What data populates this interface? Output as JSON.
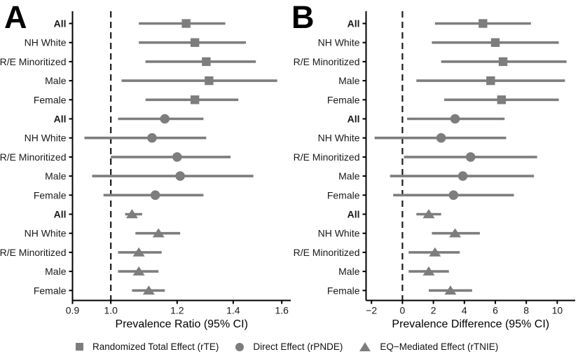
{
  "colors": {
    "marker": "#7d7d7d",
    "axis": "#000000",
    "reference_line": "#1a1a1a",
    "tick_text": "#1a1a1a",
    "title_text": "#000000"
  },
  "legend": {
    "items": [
      {
        "marker": "square",
        "label": "Randomized Total Effect (rTE)"
      },
      {
        "marker": "circle",
        "label": "Direct Effect (rPNDE)"
      },
      {
        "marker": "triangle",
        "label": "EQ−Mediated Effect (rTNIE)"
      }
    ]
  },
  "chart_data": [
    {
      "type": "scatter",
      "subtype": "forest-plot",
      "panel_label": "A",
      "xlabel": "Prevalence Ratio (95% CI)",
      "x_scale": "log",
      "x_domain": [
        0.9,
        1.64
      ],
      "x_ticks": [
        0.9,
        1.0,
        1.2,
        1.4,
        1.6
      ],
      "x_tick_labels": [
        "0.9",
        "1.0",
        "1.2",
        "1.4",
        "1.6"
      ],
      "reference_line": 1.0,
      "grid": false,
      "legend_position": "bottom",
      "categories": [
        "All",
        "NH White",
        "R/E Minoritized",
        "Male",
        "Female"
      ],
      "category_bold": [
        true,
        false,
        false,
        false,
        false
      ],
      "series": [
        {
          "name": "Randomized Total Effect (rTE)",
          "marker": "square",
          "estimates": [
            1.23,
            1.26,
            1.3,
            1.31,
            1.26
          ],
          "ci_low": [
            1.08,
            1.08,
            1.1,
            1.03,
            1.1
          ],
          "ci_high": [
            1.37,
            1.45,
            1.49,
            1.58,
            1.42
          ]
        },
        {
          "name": "Direct Effect (rPNDE)",
          "marker": "circle",
          "estimates": [
            1.16,
            1.12,
            1.2,
            1.21,
            1.13
          ],
          "ci_low": [
            1.02,
            0.93,
            1.0,
            0.95,
            0.98
          ],
          "ci_high": [
            1.29,
            1.3,
            1.39,
            1.48,
            1.29
          ]
        },
        {
          "name": "EQ−Mediated Effect (rTNIE)",
          "marker": "triangle",
          "estimates": [
            1.06,
            1.14,
            1.08,
            1.08,
            1.11
          ],
          "ci_low": [
            1.04,
            1.07,
            1.02,
            1.02,
            1.06
          ],
          "ci_high": [
            1.09,
            1.21,
            1.15,
            1.14,
            1.16
          ]
        }
      ]
    },
    {
      "type": "scatter",
      "subtype": "forest-plot",
      "panel_label": "B",
      "xlabel": "Prevalence Difference (95% CI)",
      "x_scale": "linear",
      "x_domain": [
        -2.35,
        11.16
      ],
      "x_ticks": [
        -2,
        0,
        2,
        4,
        6,
        8,
        10
      ],
      "x_tick_labels": [
        "−2",
        "0",
        "2",
        "4",
        "6",
        "8",
        "10"
      ],
      "reference_line": 0,
      "grid": false,
      "legend_position": "bottom",
      "categories": [
        "All",
        "NH White",
        "R/E Minoritized",
        "Male",
        "Female"
      ],
      "category_bold": [
        true,
        false,
        false,
        false,
        false
      ],
      "series": [
        {
          "name": "Randomized Total Effect (rTE)",
          "marker": "square",
          "estimates": [
            5.2,
            6.0,
            6.5,
            5.7,
            6.4
          ],
          "ci_low": [
            2.1,
            1.9,
            2.5,
            0.9,
            2.7
          ],
          "ci_high": [
            8.3,
            10.1,
            10.6,
            10.5,
            10.1
          ]
        },
        {
          "name": "Direct Effect (rPNDE)",
          "marker": "circle",
          "estimates": [
            3.4,
            2.5,
            4.4,
            3.9,
            3.3
          ],
          "ci_low": [
            0.3,
            -1.8,
            0.1,
            -0.8,
            -0.6
          ],
          "ci_high": [
            6.6,
            6.7,
            8.7,
            8.5,
            7.2
          ]
        },
        {
          "name": "EQ−Mediated Effect (rTNIE)",
          "marker": "triangle",
          "estimates": [
            1.7,
            3.4,
            2.1,
            1.7,
            3.1
          ],
          "ci_low": [
            0.9,
            1.9,
            0.4,
            0.4,
            1.7
          ],
          "ci_high": [
            2.5,
            5.0,
            3.7,
            3.0,
            4.5
          ]
        }
      ]
    }
  ]
}
